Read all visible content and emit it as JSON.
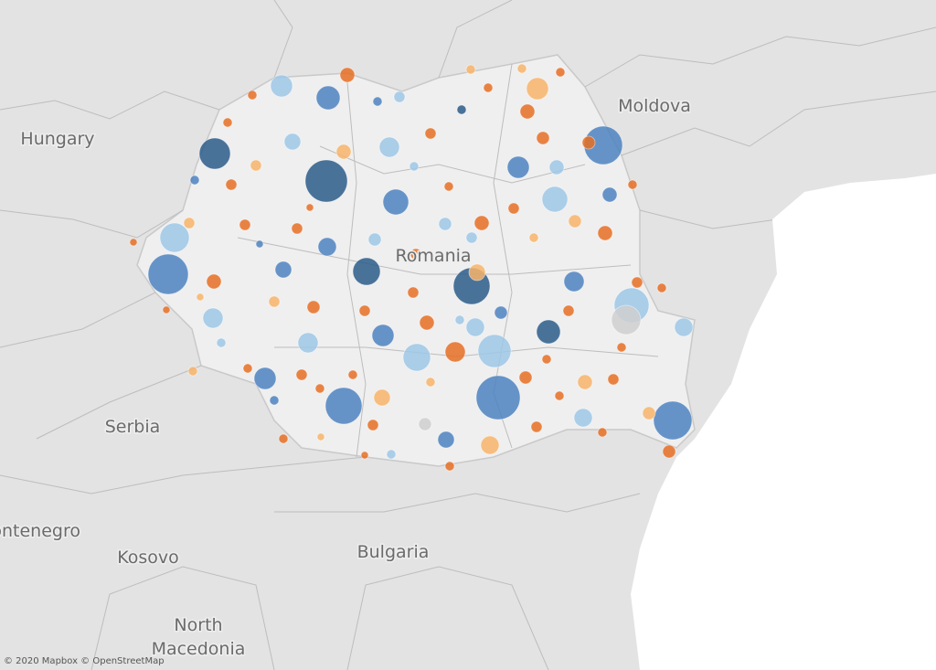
{
  "map": {
    "labels": {
      "moldova": "Moldova",
      "hungary": "Hungary",
      "romania": "Romania",
      "serbia": "Serbia",
      "montenegro": "Montenegro",
      "kosovo": "Kosovo",
      "bulgaria": "Bulgaria",
      "north_macedonia_1": "North",
      "north_macedonia_2": "Macedonia"
    },
    "attribution": "© 2020 Mapbox © OpenStreetMap"
  }
}
